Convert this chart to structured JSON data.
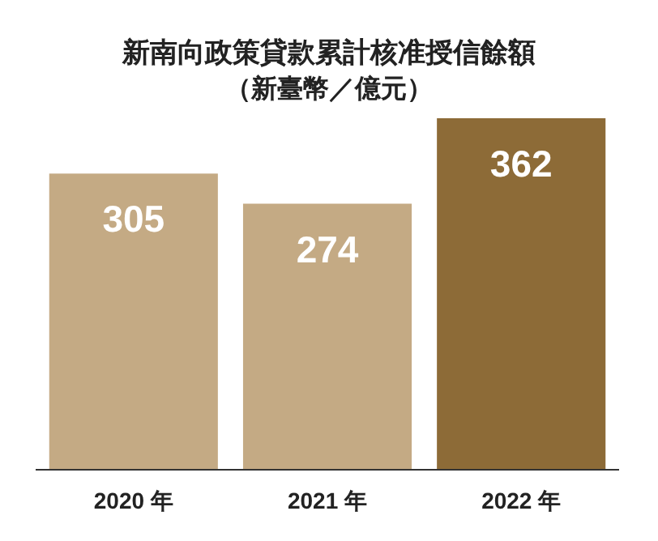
{
  "chart_data": {
    "type": "bar",
    "title": "新南向政策貸款累計核准授信餘額",
    "subtitle": "（新臺幣／億元）",
    "categories": [
      "2020 年",
      "2021 年",
      "2022 年"
    ],
    "values": [
      305,
      274,
      362
    ],
    "colors": [
      "#c4aa84",
      "#c4aa84",
      "#8d6b37"
    ],
    "data_labels": true
  }
}
